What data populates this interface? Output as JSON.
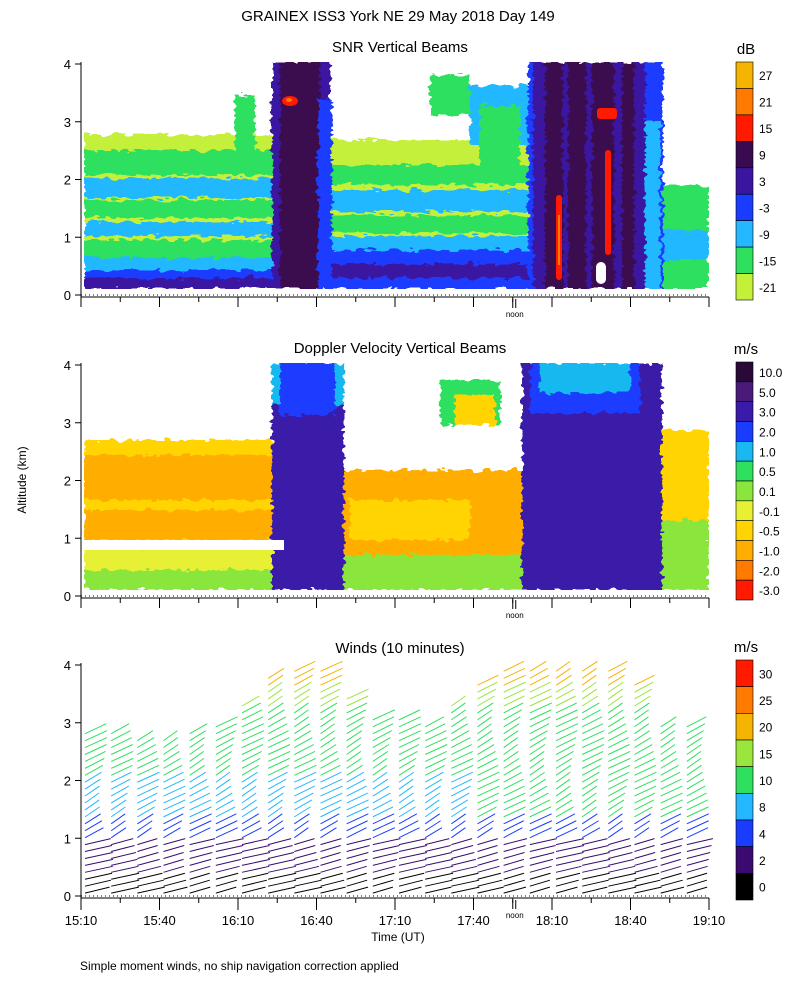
{
  "header": {
    "title": "GRAINEX ISS3 York NE  29 May 2018 Day 149",
    "footnote": "Simple moment winds, no ship navigation correction applied"
  },
  "chart_data": [
    {
      "type": "heatmap",
      "title": "SNR Vertical Beams",
      "unit": "dB",
      "ylim": [
        0,
        4
      ],
      "y_ticks": [
        "0",
        "1",
        "2",
        "3",
        "4"
      ],
      "x_marker": "noon",
      "colorbar": {
        "labels": [
          "27",
          "21",
          "15",
          "9",
          "3",
          "-3",
          "-9",
          "-15",
          "-21"
        ],
        "colors": [
          "#f5b400",
          "#ff7a00",
          "#ff1a00",
          "#3a0a50",
          "#3a16a0",
          "#1a3cff",
          "#23b8ff",
          "#2ee05e",
          "#c4f03a"
        ]
      }
    },
    {
      "type": "heatmap",
      "title": "Doppler Velocity Vertical Beams",
      "unit": "m/s",
      "ylim": [
        0,
        4
      ],
      "ylabel": "Altitude (km)",
      "y_ticks": [
        "0",
        "1",
        "2",
        "3",
        "4"
      ],
      "x_marker": "noon",
      "colorbar": {
        "labels": [
          "10.0",
          "5.0",
          "3.0",
          "2.0",
          "1.0",
          "0.5",
          "0.1",
          "-0.1",
          "-0.5",
          "-1.0",
          "-2.0",
          "-3.0"
        ],
        "colors": [
          "#2a0838",
          "#4a1a7a",
          "#3a1aa8",
          "#1a3cff",
          "#19b8f0",
          "#2ee05e",
          "#8ae63c",
          "#e8f034",
          "#ffd400",
          "#ffae00",
          "#ff7a00",
          "#ff1a00"
        ]
      }
    },
    {
      "type": "scatter",
      "title": "Winds (10 minutes)",
      "unit": "m/s",
      "ylim": [
        0,
        4
      ],
      "y_ticks": [
        "0",
        "1",
        "2",
        "3",
        "4"
      ],
      "xlabel": "Time (UT)",
      "x_ticks": [
        "15:10",
        "15:40",
        "16:10",
        "16:40",
        "17:10",
        "17:40",
        "18:10",
        "18:40",
        "19:10"
      ],
      "x_marker": "noon",
      "profile_times": [
        "15:10",
        "15:20",
        "15:30",
        "15:40",
        "15:50",
        "16:00",
        "16:10",
        "16:20",
        "16:30",
        "16:40",
        "16:50",
        "17:00",
        "17:10",
        "17:20",
        "17:30",
        "17:40",
        "17:50",
        "18:00",
        "18:10",
        "18:20",
        "18:30",
        "18:40",
        "18:50",
        "19:00"
      ],
      "colorbar": {
        "labels": [
          "30",
          "25",
          "20",
          "15",
          "10",
          "8",
          "4",
          "2",
          "0"
        ],
        "colors": [
          "#ff1a00",
          "#ff7a00",
          "#f5b400",
          "#9ae63c",
          "#2ee05e",
          "#23b8ff",
          "#1a3cff",
          "#3a0a70",
          "#000000"
        ]
      }
    }
  ]
}
